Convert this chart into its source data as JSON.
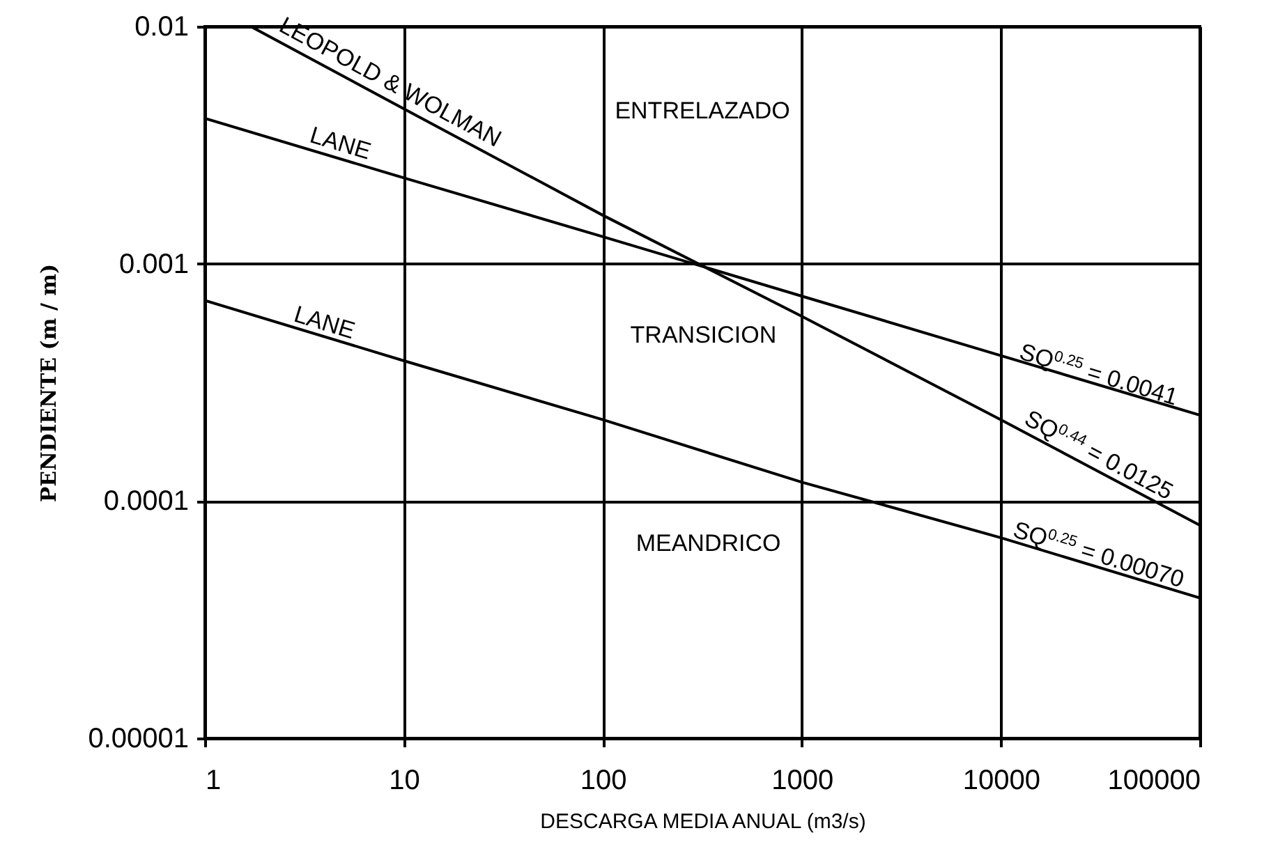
{
  "chart_data": {
    "type": "line",
    "xlabel": "DESCARGA MEDIA ANUAL (m3/s)",
    "ylabel": "PENDIENTE  (m / m)",
    "log": "xy",
    "grid": true,
    "marker": "none",
    "line_style": "solid",
    "xlim": [
      1,
      100000
    ],
    "xticks": [
      1,
      10,
      100,
      1000,
      10000,
      100000
    ],
    "ylim": [
      1e-05,
      0.01
    ],
    "yticks": [
      {
        "value": 1e-05,
        "label": "0.00001"
      },
      0.0001,
      0.001,
      0.01
    ],
    "series": [
      {
        "color": "#000000",
        "x": [
          1,
          10,
          100,
          1000,
          10000,
          100000
        ],
        "values": [
          0.0041,
          0.0023,
          0.0013,
          0.00073,
          0.00041,
          0.00023
        ]
      },
      {
        "color": "#000000",
        "x": [
          1.7,
          10,
          100,
          1000,
          10000,
          100000
        ],
        "values": [
          0.01,
          0.0045,
          0.0016,
          0.0006,
          0.00022,
          7.9e-05
        ]
      },
      {
        "color": "#000000",
        "x": [
          1,
          10,
          100,
          1000,
          10000,
          100000
        ],
        "values": [
          0.0007,
          0.00039,
          0.00022,
          0.00012,
          7e-05,
          3.9e-05
        ]
      }
    ],
    "annotations": [
      "LEOPOLD & WOLMAN",
      "LANE",
      "LANE",
      "ENTRELAZADO",
      "TRANSICION",
      "MEANDRICO",
      "SQ$^{0.25}$ = 0.0041",
      "SQ$^{0.44}$ = 0.0125",
      "SQ$^{0.25}$ = 0.00070"
    ]
  }
}
